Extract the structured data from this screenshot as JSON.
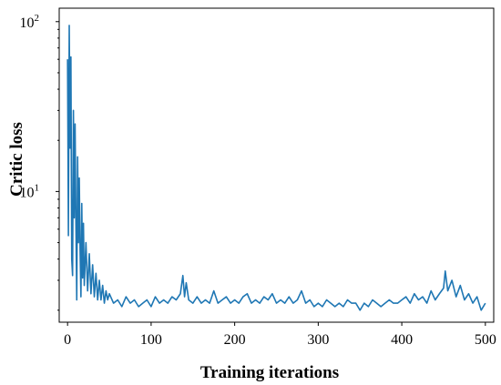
{
  "chart_data": {
    "type": "line",
    "title": "",
    "xlabel": "Training iterations",
    "ylabel": "Critic  loss",
    "xlim": [
      -10,
      510
    ],
    "ylim": [
      1.7,
      120
    ],
    "yscale": "log",
    "xticks": [
      0,
      100,
      200,
      300,
      400,
      500
    ],
    "yticks": [
      {
        "value": 10,
        "base": "10",
        "exp": "1"
      },
      {
        "value": 100,
        "base": "10",
        "exp": "2"
      }
    ],
    "grid": false,
    "legend": "none",
    "line_color": "#1f77b4",
    "series": [
      {
        "x": [
          0,
          1,
          2,
          3,
          4,
          5,
          6,
          7,
          8,
          9,
          10,
          11,
          12,
          13,
          14,
          15,
          16,
          17,
          18,
          19,
          20,
          22,
          24,
          26,
          28,
          30,
          32,
          34,
          36,
          38,
          40,
          42,
          44,
          46,
          48,
          50,
          55,
          60,
          65,
          70,
          75,
          80,
          85,
          90,
          95,
          100,
          105,
          110,
          115,
          120,
          125,
          130,
          135,
          138,
          140,
          142,
          145,
          150,
          155,
          160,
          165,
          170,
          175,
          180,
          185,
          190,
          195,
          200,
          205,
          210,
          215,
          220,
          225,
          230,
          235,
          240,
          245,
          250,
          255,
          260,
          265,
          270,
          275,
          280,
          285,
          290,
          295,
          300,
          305,
          310,
          315,
          320,
          325,
          330,
          335,
          340,
          345,
          350,
          355,
          360,
          365,
          370,
          375,
          380,
          385,
          390,
          395,
          400,
          405,
          410,
          415,
          420,
          425,
          430,
          435,
          440,
          445,
          450,
          452,
          455,
          460,
          465,
          470,
          475,
          480,
          485,
          490,
          495,
          500
        ],
        "y": [
          60,
          5.5,
          95,
          18,
          62,
          4,
          3.2,
          30,
          7,
          25,
          6.5,
          2.3,
          16,
          5,
          12,
          4.5,
          2.4,
          8.5,
          3.1,
          6.5,
          2.8,
          5,
          2.6,
          4.3,
          2.5,
          3.7,
          2.4,
          3.3,
          2.3,
          3.0,
          2.3,
          2.8,
          2.2,
          2.6,
          2.3,
          2.5,
          2.2,
          2.3,
          2.1,
          2.4,
          2.2,
          2.3,
          2.1,
          2.2,
          2.3,
          2.1,
          2.4,
          2.2,
          2.3,
          2.2,
          2.4,
          2.3,
          2.5,
          3.2,
          2.4,
          2.9,
          2.3,
          2.2,
          2.4,
          2.2,
          2.3,
          2.2,
          2.6,
          2.2,
          2.3,
          2.4,
          2.2,
          2.3,
          2.2,
          2.4,
          2.5,
          2.2,
          2.3,
          2.2,
          2.4,
          2.3,
          2.5,
          2.2,
          2.3,
          2.2,
          2.4,
          2.2,
          2.3,
          2.6,
          2.2,
          2.3,
          2.1,
          2.2,
          2.1,
          2.3,
          2.2,
          2.1,
          2.2,
          2.1,
          2.3,
          2.2,
          2.2,
          2.0,
          2.2,
          2.1,
          2.3,
          2.2,
          2.1,
          2.2,
          2.3,
          2.2,
          2.2,
          2.3,
          2.4,
          2.2,
          2.5,
          2.3,
          2.4,
          2.2,
          2.6,
          2.3,
          2.5,
          2.7,
          3.4,
          2.6,
          3.0,
          2.4,
          2.8,
          2.3,
          2.5,
          2.2,
          2.4,
          2.0,
          2.2
        ]
      }
    ]
  }
}
